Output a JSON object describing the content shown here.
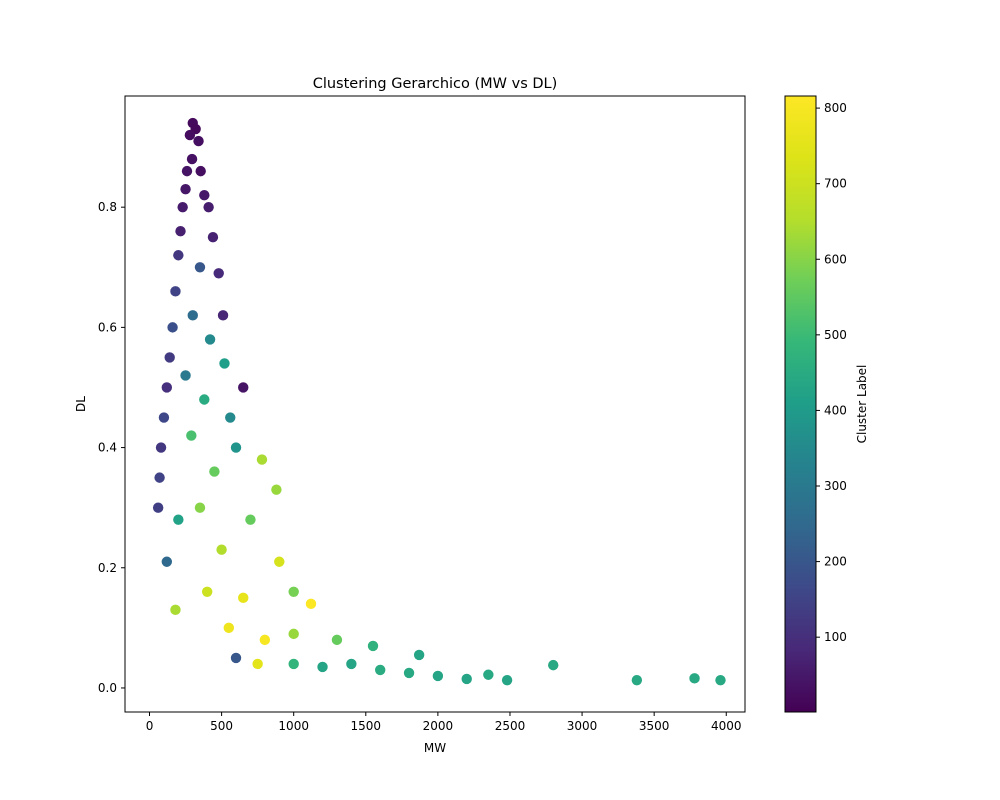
{
  "chart_data": {
    "type": "scatter",
    "title": "Clustering Gerarchico (MW vs DL)",
    "xlabel": "MW",
    "ylabel": "DL",
    "xlim": [
      -170,
      4130
    ],
    "ylim": [
      -0.04,
      0.985
    ],
    "xticks": [
      0,
      500,
      1000,
      1500,
      2000,
      2500,
      3000,
      3500,
      4000
    ],
    "yticks": [
      0.0,
      0.2,
      0.4,
      0.6,
      0.8
    ],
    "ytick_labels": [
      "0.0",
      "0.2",
      "0.4",
      "0.6",
      "0.8"
    ],
    "grid": false,
    "colormap": "viridis",
    "colorbar": {
      "label": "Cluster Label",
      "range": [
        1,
        816
      ],
      "ticks": [
        100,
        200,
        300,
        400,
        500,
        600,
        700,
        800
      ]
    },
    "points": [
      {
        "x": 300,
        "y": 0.94,
        "c": 20
      },
      {
        "x": 320,
        "y": 0.93,
        "c": 15
      },
      {
        "x": 280,
        "y": 0.92,
        "c": 25
      },
      {
        "x": 340,
        "y": 0.91,
        "c": 30
      },
      {
        "x": 295,
        "y": 0.88,
        "c": 35
      },
      {
        "x": 260,
        "y": 0.86,
        "c": 40
      },
      {
        "x": 355,
        "y": 0.86,
        "c": 28
      },
      {
        "x": 250,
        "y": 0.83,
        "c": 45
      },
      {
        "x": 380,
        "y": 0.82,
        "c": 50
      },
      {
        "x": 230,
        "y": 0.8,
        "c": 55
      },
      {
        "x": 410,
        "y": 0.8,
        "c": 60
      },
      {
        "x": 215,
        "y": 0.76,
        "c": 65
      },
      {
        "x": 440,
        "y": 0.75,
        "c": 70
      },
      {
        "x": 200,
        "y": 0.72,
        "c": 120
      },
      {
        "x": 480,
        "y": 0.69,
        "c": 90
      },
      {
        "x": 180,
        "y": 0.66,
        "c": 150
      },
      {
        "x": 350,
        "y": 0.7,
        "c": 200
      },
      {
        "x": 510,
        "y": 0.62,
        "c": 80
      },
      {
        "x": 160,
        "y": 0.6,
        "c": 180
      },
      {
        "x": 300,
        "y": 0.62,
        "c": 260
      },
      {
        "x": 420,
        "y": 0.58,
        "c": 350
      },
      {
        "x": 140,
        "y": 0.55,
        "c": 130
      },
      {
        "x": 520,
        "y": 0.54,
        "c": 410
      },
      {
        "x": 120,
        "y": 0.5,
        "c": 100
      },
      {
        "x": 250,
        "y": 0.52,
        "c": 300
      },
      {
        "x": 380,
        "y": 0.48,
        "c": 450
      },
      {
        "x": 650,
        "y": 0.5,
        "c": 40
      },
      {
        "x": 100,
        "y": 0.45,
        "c": 160
      },
      {
        "x": 560,
        "y": 0.45,
        "c": 350
      },
      {
        "x": 80,
        "y": 0.4,
        "c": 120
      },
      {
        "x": 290,
        "y": 0.42,
        "c": 520
      },
      {
        "x": 600,
        "y": 0.4,
        "c": 380
      },
      {
        "x": 70,
        "y": 0.35,
        "c": 150
      },
      {
        "x": 450,
        "y": 0.36,
        "c": 560
      },
      {
        "x": 780,
        "y": 0.38,
        "c": 640
      },
      {
        "x": 60,
        "y": 0.3,
        "c": 140
      },
      {
        "x": 350,
        "y": 0.3,
        "c": 600
      },
      {
        "x": 880,
        "y": 0.33,
        "c": 620
      },
      {
        "x": 200,
        "y": 0.28,
        "c": 420
      },
      {
        "x": 700,
        "y": 0.28,
        "c": 560
      },
      {
        "x": 120,
        "y": 0.21,
        "c": 250
      },
      {
        "x": 500,
        "y": 0.23,
        "c": 650
      },
      {
        "x": 900,
        "y": 0.21,
        "c": 720
      },
      {
        "x": 180,
        "y": 0.13,
        "c": 640
      },
      {
        "x": 400,
        "y": 0.16,
        "c": 700
      },
      {
        "x": 650,
        "y": 0.15,
        "c": 760
      },
      {
        "x": 1000,
        "y": 0.16,
        "c": 580
      },
      {
        "x": 1120,
        "y": 0.14,
        "c": 810
      },
      {
        "x": 550,
        "y": 0.1,
        "c": 780
      },
      {
        "x": 800,
        "y": 0.08,
        "c": 800
      },
      {
        "x": 1000,
        "y": 0.09,
        "c": 620
      },
      {
        "x": 1300,
        "y": 0.08,
        "c": 560
      },
      {
        "x": 600,
        "y": 0.05,
        "c": 200
      },
      {
        "x": 750,
        "y": 0.04,
        "c": 750
      },
      {
        "x": 1000,
        "y": 0.04,
        "c": 480
      },
      {
        "x": 1200,
        "y": 0.035,
        "c": 430
      },
      {
        "x": 1550,
        "y": 0.07,
        "c": 470
      },
      {
        "x": 1400,
        "y": 0.04,
        "c": 430
      },
      {
        "x": 1600,
        "y": 0.03,
        "c": 450
      },
      {
        "x": 1870,
        "y": 0.055,
        "c": 430
      },
      {
        "x": 1800,
        "y": 0.025,
        "c": 440
      },
      {
        "x": 2000,
        "y": 0.02,
        "c": 430
      },
      {
        "x": 2200,
        "y": 0.015,
        "c": 430
      },
      {
        "x": 2350,
        "y": 0.022,
        "c": 440
      },
      {
        "x": 2480,
        "y": 0.013,
        "c": 430
      },
      {
        "x": 2800,
        "y": 0.038,
        "c": 440
      },
      {
        "x": 3380,
        "y": 0.013,
        "c": 440
      },
      {
        "x": 3780,
        "y": 0.016,
        "c": 440
      },
      {
        "x": 3960,
        "y": 0.013,
        "c": 440
      }
    ]
  }
}
